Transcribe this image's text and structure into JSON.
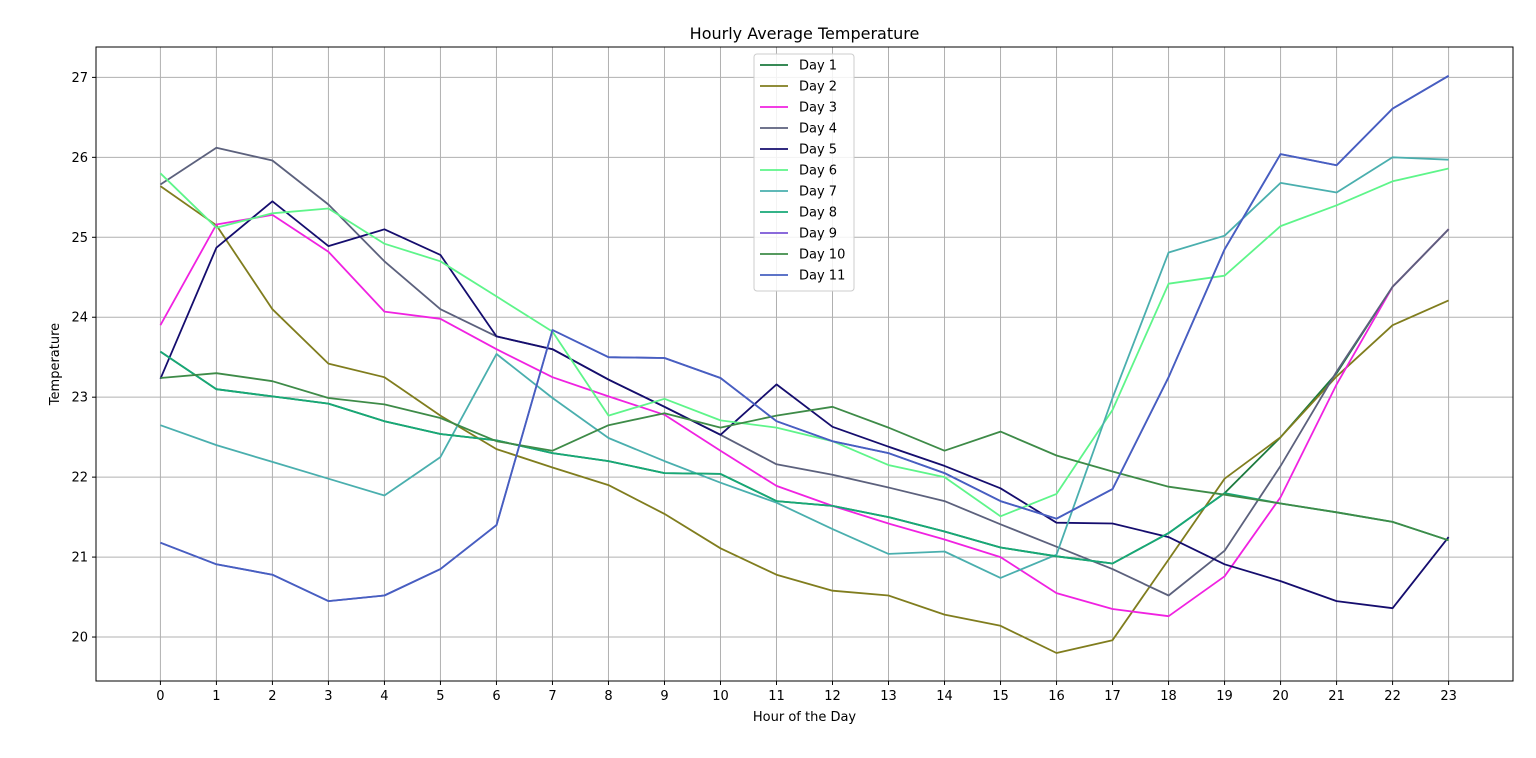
{
  "chart_data": {
    "type": "line",
    "title": "Hourly Average Temperature",
    "xlabel": "Hour of the Day",
    "ylabel": "Temperature",
    "x": [
      0,
      1,
      2,
      3,
      4,
      5,
      6,
      7,
      8,
      9,
      10,
      11,
      12,
      13,
      14,
      15,
      16,
      17,
      18,
      19,
      20,
      21,
      22,
      23
    ],
    "xlim": [
      -1.15,
      24.15
    ],
    "ylim": [
      19.45,
      27.38
    ],
    "yticks": [
      20,
      21,
      22,
      23,
      24,
      25,
      26,
      27
    ],
    "grid": true,
    "legend_position": "top-center",
    "series": [
      {
        "name": "Day 1",
        "color": "#1b7a3e",
        "values": [
          23.57,
          23.1,
          23.01,
          22.92,
          22.7,
          22.54,
          22.46,
          22.3,
          22.2,
          22.05,
          22.04,
          21.7,
          21.64,
          21.5,
          21.32,
          21.12,
          21.01,
          20.92,
          21.3,
          21.8,
          22.5,
          23.3,
          24.38,
          25.1
        ]
      },
      {
        "name": "Day 2",
        "color": "#807d1e",
        "values": [
          25.64,
          25.15,
          24.1,
          23.42,
          23.25,
          22.77,
          22.35,
          22.12,
          21.9,
          21.54,
          21.11,
          20.78,
          20.58,
          20.52,
          20.28,
          20.14,
          19.8,
          19.96,
          20.97,
          21.98,
          22.5,
          23.26,
          23.9,
          24.21
        ]
      },
      {
        "name": "Day 3",
        "color": "#f022e1",
        "values": [
          23.9,
          25.16,
          25.28,
          24.82,
          24.07,
          23.98,
          23.6,
          23.25,
          23.01,
          22.78,
          22.33,
          21.89,
          21.64,
          21.42,
          21.22,
          21.0,
          20.55,
          20.35,
          20.26,
          20.76,
          21.75,
          23.16,
          24.38,
          25.1
        ]
      },
      {
        "name": "Day 4",
        "color": "#5c617d",
        "values": [
          25.66,
          26.12,
          25.96,
          25.41,
          24.7,
          24.1,
          23.76,
          23.6,
          23.22,
          22.88,
          22.53,
          22.16,
          22.03,
          21.87,
          21.7,
          21.41,
          21.13,
          20.85,
          20.52,
          21.08,
          22.14,
          23.32,
          24.38,
          25.1
        ]
      },
      {
        "name": "Day 5",
        "color": "#150d6e",
        "values": [
          23.23,
          24.87,
          25.45,
          24.89,
          25.1,
          24.78,
          23.76,
          23.6,
          23.22,
          22.88,
          22.53,
          23.16,
          22.63,
          22.38,
          22.14,
          21.86,
          21.43,
          21.42,
          21.25,
          20.91,
          20.7,
          20.45,
          20.36,
          21.25
        ]
      },
      {
        "name": "Day 6",
        "color": "#5ef58a",
        "values": [
          25.8,
          25.12,
          25.3,
          25.36,
          24.92,
          24.7,
          24.26,
          23.82,
          22.77,
          22.98,
          22.71,
          22.62,
          22.45,
          22.15,
          22.0,
          21.51,
          21.79,
          22.84,
          24.42,
          24.52,
          25.14,
          25.4,
          25.7,
          25.86
        ]
      },
      {
        "name": "Day 7",
        "color": "#4aafae",
        "values": [
          22.65,
          22.4,
          22.19,
          21.98,
          21.77,
          22.25,
          23.54,
          22.99,
          22.49,
          22.2,
          21.93,
          21.68,
          21.35,
          21.04,
          21.07,
          20.74,
          21.03,
          22.99,
          24.81,
          25.02,
          25.68,
          25.56,
          26.0,
          25.97
        ]
      },
      {
        "name": "Day 8",
        "color": "#17a877",
        "values": [
          23.57,
          23.1,
          23.01,
          22.92,
          22.7,
          22.54,
          22.46,
          22.3,
          22.2,
          22.05,
          22.04,
          21.7,
          21.64,
          21.5,
          21.32,
          21.12,
          21.01,
          20.92,
          21.3,
          21.8,
          21.67,
          21.56,
          21.44,
          21.21
        ]
      },
      {
        "name": "Day 9",
        "color": "#7a55d6",
        "values": [
          21.18,
          20.91,
          20.78,
          20.45,
          20.52,
          20.85,
          21.4,
          23.84,
          23.5,
          23.49,
          23.24,
          22.7,
          22.45,
          22.3,
          22.05,
          21.7,
          21.48,
          21.85,
          23.25,
          24.85,
          26.04,
          25.9,
          26.61,
          27.02
        ]
      },
      {
        "name": "Day 10",
        "color": "#3e8b48",
        "values": [
          23.24,
          23.3,
          23.2,
          22.99,
          22.91,
          22.74,
          22.45,
          22.33,
          22.65,
          22.8,
          22.62,
          22.77,
          22.88,
          22.62,
          22.33,
          22.57,
          22.27,
          22.07,
          21.88,
          21.78,
          21.67,
          21.56,
          21.44,
          21.21
        ]
      },
      {
        "name": "Day 11",
        "color": "#4660c0",
        "values": [
          21.18,
          20.91,
          20.78,
          20.45,
          20.52,
          20.85,
          21.4,
          23.84,
          23.5,
          23.49,
          23.24,
          22.7,
          22.45,
          22.3,
          22.05,
          21.7,
          21.48,
          21.85,
          23.25,
          24.85,
          26.04,
          25.9,
          26.61,
          27.02
        ]
      }
    ]
  }
}
